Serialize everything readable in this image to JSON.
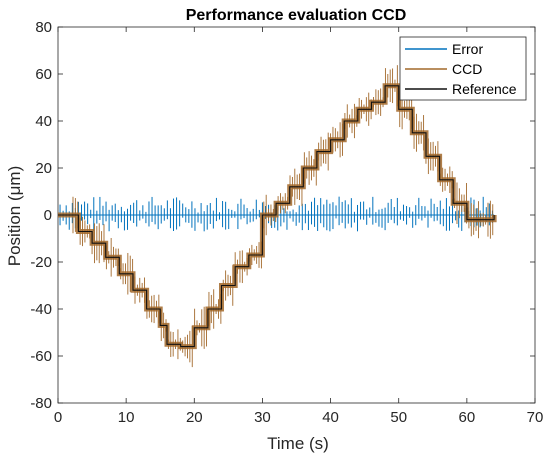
{
  "chart_data": {
    "type": "line",
    "title": "Performance evaluation CCD",
    "xlabel": "Time (s)",
    "ylabel": "Position (μm)",
    "xlim": [
      0,
      70
    ],
    "ylim": [
      -80,
      80
    ],
    "xticks": [
      "0",
      "10",
      "20",
      "30",
      "40",
      "50",
      "60",
      "70"
    ],
    "yticks": [
      "80",
      "60",
      "40",
      "20",
      "0",
      "-20",
      "-40",
      "-60",
      "-80"
    ],
    "grid": false,
    "legend_position": "top-right",
    "series": [
      {
        "name": "Error",
        "color": "#0072BD",
        "x": [
          0,
          2,
          5,
          10,
          15,
          20,
          25,
          28,
          30,
          35,
          40,
          45,
          50,
          55,
          58,
          60,
          64
        ],
        "y": [
          0,
          0,
          0,
          0,
          0,
          0,
          0,
          0,
          0,
          0,
          0,
          0,
          0,
          0,
          0,
          0,
          0
        ]
      },
      {
        "name": "CCD",
        "color": "#A2682A",
        "x": [
          0,
          2,
          3,
          5,
          7,
          9,
          11,
          13,
          15,
          16,
          18,
          20,
          22,
          24,
          26,
          28,
          30,
          32,
          34,
          36,
          38,
          40,
          42,
          44,
          46,
          48,
          50,
          52,
          54,
          56,
          58,
          60,
          64
        ],
        "y": [
          0,
          0,
          -7,
          -12,
          -18,
          -25,
          -32,
          -40,
          -47,
          -55,
          -56,
          -48,
          -40,
          -30,
          -22,
          -17,
          0,
          5,
          12,
          20,
          27,
          32,
          40,
          45,
          48,
          55,
          45,
          35,
          25,
          15,
          5,
          -2,
          0
        ]
      },
      {
        "name": "Reference",
        "color": "#111111",
        "x": [
          0,
          2,
          3,
          5,
          7,
          9,
          11,
          13,
          15,
          16,
          18,
          20,
          22,
          24,
          26,
          28,
          30,
          32,
          34,
          36,
          38,
          40,
          42,
          44,
          46,
          48,
          50,
          52,
          54,
          56,
          58,
          60,
          64
        ],
        "y": [
          0,
          0,
          -7,
          -12,
          -18,
          -25,
          -32,
          -40,
          -47,
          -55,
          -56,
          -48,
          -40,
          -30,
          -22,
          -17,
          0,
          5,
          12,
          20,
          27,
          32,
          40,
          45,
          48,
          55,
          45,
          35,
          25,
          15,
          5,
          -2,
          0
        ]
      }
    ]
  }
}
